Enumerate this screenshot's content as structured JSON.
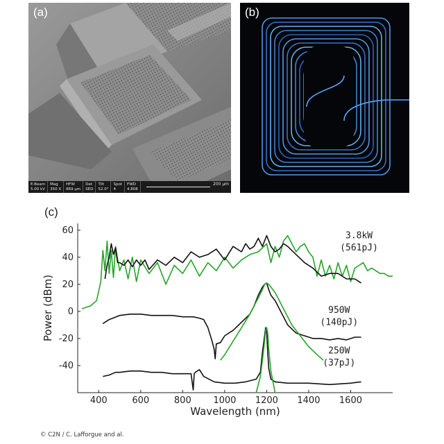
{
  "figure": {
    "panel_a_label": "(a)",
    "panel_b_label": "(b)",
    "panel_c_label": "(c)",
    "copyright": "© C2N / C. Lafforgue and al."
  },
  "sem_info": {
    "columns": [
      {
        "header": "E-Beam",
        "value": "5.00 kV"
      },
      {
        "header": "Mag",
        "value": "350 X"
      },
      {
        "header": "HFW",
        "value": "869 µm"
      },
      {
        "header": "Det",
        "value": "SED"
      },
      {
        "header": "Tilt",
        "value": "52.0°"
      },
      {
        "header": "Spot",
        "value": "4"
      },
      {
        "header": "FWD",
        "value": "4.808"
      }
    ],
    "scale_label": "200 µm"
  },
  "chart_data": {
    "type": "line",
    "xlabel": "Wavelength (nm)",
    "ylabel": "Power (dBm)",
    "xlim": [
      300,
      1800
    ],
    "ylim": [
      -60,
      65
    ],
    "xticks": [
      400,
      600,
      800,
      1000,
      1200,
      1400,
      1600
    ],
    "yticks": [
      60,
      40,
      20,
      0,
      -20,
      -40
    ],
    "grid": false,
    "colors": {
      "measured": "#111111",
      "simulated": "#27a32a"
    },
    "annotations": [
      {
        "text": "3.8kW",
        "x": 1640,
        "y": 54
      },
      {
        "text": "(561pJ)",
        "x": 1640,
        "y": 45
      },
      {
        "text": "950W",
        "x": 1545,
        "y": -1
      },
      {
        "text": "(140pJ)",
        "x": 1545,
        "y": -10
      },
      {
        "text": "250W",
        "x": 1545,
        "y": -31
      },
      {
        "text": "(37pJ)",
        "x": 1545,
        "y": -40
      }
    ],
    "series": [
      {
        "group": "3.8kW",
        "kind": "simulated",
        "x": [
          320,
          360,
          390,
          410,
          420,
          430,
          440,
          450,
          460,
          470,
          480,
          500,
          520,
          540,
          560,
          580,
          600,
          640,
          680,
          720,
          760,
          800,
          840,
          880,
          920,
          960,
          1000,
          1040,
          1080,
          1120,
          1160,
          1200,
          1220,
          1240,
          1260,
          1280,
          1300,
          1320,
          1340,
          1360,
          1380,
          1400,
          1420,
          1440,
          1460,
          1480,
          1500,
          1520,
          1540,
          1560,
          1580,
          1600,
          1620,
          1640,
          1660,
          1680,
          1700,
          1720,
          1740,
          1760,
          1780,
          1800
        ],
        "y": [
          2,
          4,
          8,
          22,
          45,
          30,
          52,
          28,
          45,
          25,
          48,
          30,
          38,
          24,
          40,
          22,
          38,
          28,
          36,
          20,
          34,
          28,
          38,
          26,
          36,
          30,
          40,
          32,
          38,
          42,
          44,
          50,
          36,
          48,
          40,
          52,
          56,
          50,
          44,
          48,
          50,
          44,
          40,
          26,
          38,
          26,
          34,
          24,
          36,
          26,
          34,
          22,
          32,
          34,
          36,
          30,
          32,
          30,
          28,
          28,
          26,
          26
        ]
      },
      {
        "group": "3.8kW",
        "kind": "measured",
        "x": [
          430,
          440,
          450,
          460,
          470,
          480,
          490,
          500,
          520,
          540,
          560,
          580,
          600,
          620,
          640,
          680,
          720,
          760,
          800,
          840,
          880,
          920,
          960,
          1000,
          1040,
          1080,
          1100,
          1120,
          1140,
          1160,
          1180,
          1200,
          1220,
          1240,
          1260,
          1280,
          1300,
          1340,
          1380,
          1420,
          1460,
          1500,
          1540,
          1580,
          1620,
          1650
        ],
        "y": [
          24,
          34,
          40,
          50,
          42,
          47,
          36,
          36,
          34,
          38,
          33,
          38,
          34,
          38,
          31,
          38,
          34,
          40,
          36,
          44,
          40,
          42,
          46,
          38,
          48,
          44,
          50,
          46,
          48,
          54,
          48,
          56,
          48,
          44,
          46,
          50,
          48,
          42,
          36,
          32,
          26,
          28,
          28,
          24,
          24,
          21
        ]
      },
      {
        "group": "950W",
        "kind": "measured",
        "x": [
          420,
          450,
          500,
          550,
          600,
          650,
          700,
          750,
          800,
          850,
          880,
          900,
          920,
          940,
          950,
          955,
          960,
          980,
          1000,
          1040,
          1080,
          1120,
          1140,
          1160,
          1180,
          1190,
          1200,
          1210,
          1220,
          1240,
          1260,
          1300,
          1340,
          1380,
          1420,
          1460,
          1500,
          1540,
          1580,
          1620,
          1650
        ],
        "y": [
          -9,
          -6,
          -3,
          -2,
          -2,
          -3,
          -3,
          -3,
          -4,
          -4,
          -5,
          -6,
          -12,
          -22,
          -28,
          -35,
          -24,
          -23,
          -18,
          -14,
          -8,
          -2,
          4,
          12,
          18,
          20,
          21,
          16,
          12,
          8,
          2,
          -10,
          -16,
          -18,
          -20,
          -20,
          -21,
          -20,
          -21,
          -19,
          -19
        ]
      },
      {
        "group": "950W",
        "kind": "simulated",
        "x": [
          980,
          1000,
          1040,
          1080,
          1120,
          1140,
          1160,
          1180,
          1190,
          1200,
          1210,
          1220,
          1240,
          1260,
          1280,
          1300,
          1320,
          1360,
          1400,
          1440,
          1470
        ],
        "y": [
          -36,
          -32,
          -22,
          -12,
          -2,
          4,
          10,
          16,
          20,
          21,
          20,
          18,
          14,
          8,
          2,
          -4,
          -10,
          -18,
          -26,
          -32,
          -36
        ]
      },
      {
        "group": "250W",
        "kind": "measured",
        "x": [
          420,
          450,
          480,
          500,
          550,
          600,
          650,
          700,
          750,
          800,
          840,
          850,
          855,
          860,
          880,
          900,
          950,
          1000,
          1050,
          1100,
          1150,
          1170,
          1180,
          1190,
          1195,
          1200,
          1205,
          1210,
          1220,
          1240,
          1300,
          1400,
          1500,
          1600,
          1650
        ],
        "y": [
          -48,
          -47,
          -45,
          -45,
          -44,
          -44,
          -45,
          -45,
          -46,
          -46,
          -46,
          -58,
          -46,
          -45,
          -43,
          -48,
          -52,
          -53,
          -53,
          -52,
          -50,
          -45,
          -30,
          -18,
          -12,
          -15,
          -30,
          -42,
          -50,
          -52,
          -53,
          -53,
          -54,
          -53,
          -52
        ]
      },
      {
        "group": "250W",
        "kind": "simulated",
        "x": [
          1150,
          1170,
          1180,
          1190,
          1195,
          1200,
          1205,
          1210,
          1220,
          1240
        ],
        "y": [
          -60,
          -48,
          -36,
          -22,
          -14,
          -12,
          -16,
          -28,
          -44,
          -60
        ]
      }
    ]
  }
}
